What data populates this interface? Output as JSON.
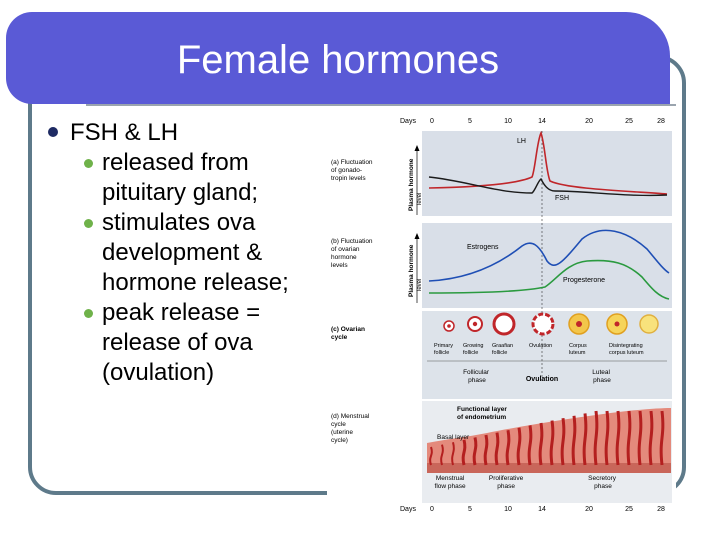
{
  "slide": {
    "title": "Female hormones",
    "bullet": "FSH & LH",
    "subbullets": [
      [
        "released from",
        "pituitary gland;"
      ],
      [
        "stimulates ova",
        "development &",
        "hormone release;"
      ],
      [
        "peak release =",
        "release of ova",
        "(ovulation)"
      ]
    ]
  },
  "figure": {
    "days_label": "Days",
    "day_ticks": [
      "0",
      "5",
      "10",
      "14",
      "20",
      "25",
      "28"
    ],
    "panel_a": {
      "label": [
        "(a) Fluctuation",
        "of gonado-",
        "tropin levels"
      ],
      "axis": [
        "Plasma hormone",
        "level"
      ],
      "lh": "LH",
      "fsh": "FSH"
    },
    "panel_b": {
      "label": [
        "(b) Fluctuation",
        "of ovarian",
        "hormone",
        "levels"
      ],
      "axis": [
        "Plasma hormone",
        "level"
      ],
      "estrogens": "Estrogens",
      "progesterone": "Progesterone"
    },
    "panel_c": {
      "label": [
        "(c) Ovarian",
        "cycle"
      ],
      "follicles": [
        [
          "Primary",
          "follicle"
        ],
        [
          "Growing",
          "follicle"
        ],
        [
          "Graafian",
          "follicle"
        ],
        [
          "Ovulation",
          ""
        ],
        [
          "Corpus",
          "luteum"
        ],
        [
          "Disintegrating",
          "corpus luteum"
        ]
      ],
      "follicular_phase": [
        "Follicular",
        "phase"
      ],
      "ovulation": "Ovulation",
      "luteal_phase": [
        "Luteal",
        "phase"
      ]
    },
    "panel_d": {
      "label": [
        "(d) Menstrual",
        "cycle",
        "(uterine",
        "cycle)"
      ],
      "functional_layer": [
        "Functional layer",
        "of endometrium"
      ],
      "basal_layer": "Basal layer",
      "phases": [
        [
          "Menstrual",
          "flow phase"
        ],
        [
          "Proliferative",
          "phase"
        ],
        [
          "Secretory",
          "phase"
        ]
      ]
    },
    "colors": {
      "lh": "#c0262a",
      "fsh": "#1b1b1b",
      "estrogens": "#1f4fb5",
      "progesterone": "#2a9a3f",
      "bg": "#d9dfe8",
      "tissue": "#e48a7c",
      "tissue_dark": "#b41f1f"
    }
  }
}
